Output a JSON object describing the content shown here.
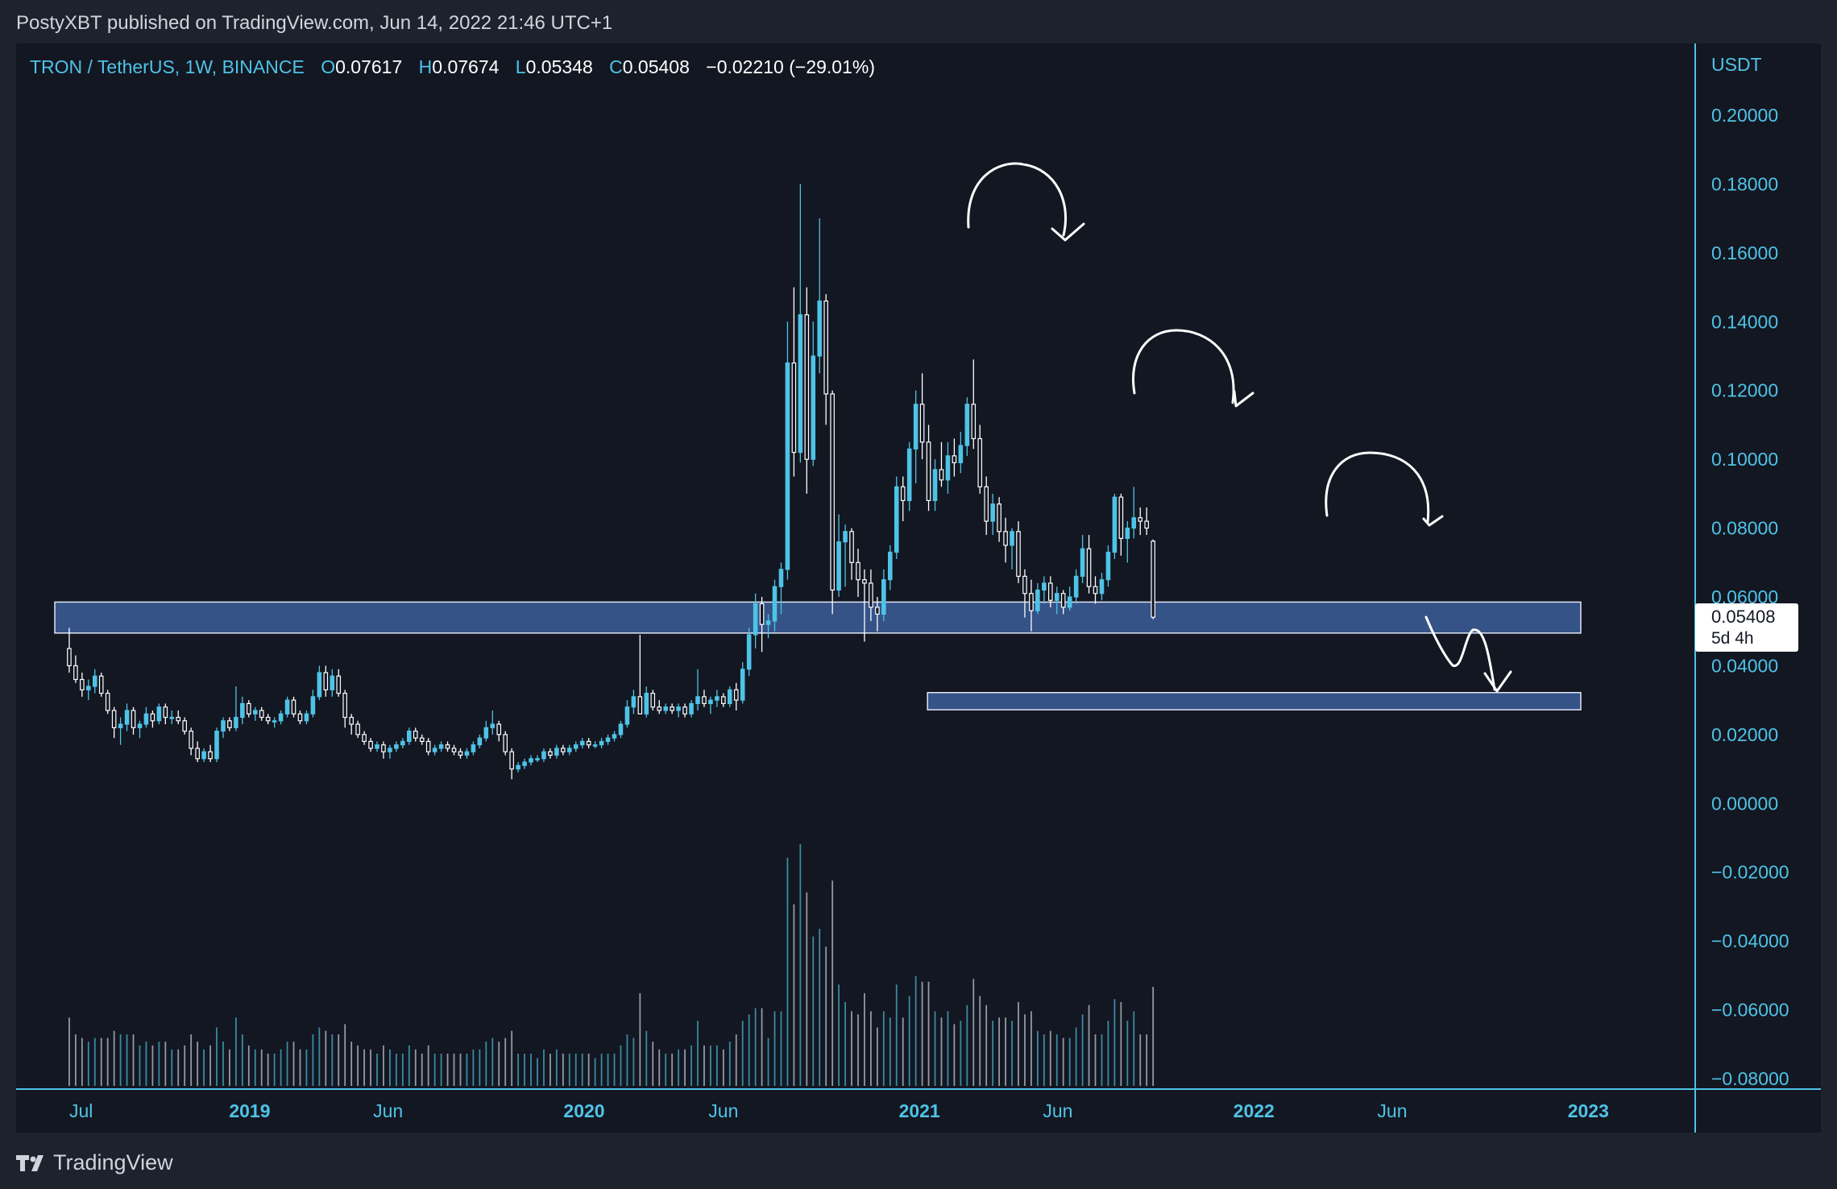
{
  "header": {
    "published": "PostyXBT published on TradingView.com, Jun 14, 2022 21:46 UTC+1"
  },
  "legend": {
    "symbol": "TRON / TetherUS, 1W, BINANCE",
    "open_label": "O",
    "open": "0.07617",
    "high_label": "H",
    "high": "0.07674",
    "low_label": "L",
    "low": "0.05348",
    "close_label": "C",
    "close": "0.05408",
    "change": "−0.02210 (−29.01%)"
  },
  "price_tag": {
    "price": "0.05408",
    "countdown": "5d 4h"
  },
  "footer": {
    "brand": "TradingView",
    "logo_icon": "tradingview-logo-icon"
  },
  "colors": {
    "background": "#131722",
    "up": "#4fc3e6",
    "down": "#ffffff",
    "zone": "#3a5a92",
    "axis_text": "#4fc3e6"
  },
  "chart_data": {
    "type": "candlestick",
    "ylabel": "USDT",
    "ylim": [
      -0.08,
      0.2
    ],
    "y_ticks": [
      "0.20000",
      "0.18000",
      "0.16000",
      "0.14000",
      "0.12000",
      "0.10000",
      "0.08000",
      "0.06000",
      "0.04000",
      "0.02000",
      "0.00000",
      "−0.02000",
      "−0.04000",
      "−0.06000",
      "−0.08000"
    ],
    "y_tick_values": [
      0.2,
      0.18,
      0.16,
      0.14,
      0.12,
      0.1,
      0.08,
      0.06,
      0.04,
      0.02,
      0,
      -0.02,
      -0.04,
      -0.06,
      -0.08
    ],
    "x_range": [
      "2018-06-04",
      "2023-03-20"
    ],
    "x_ticks": [
      {
        "label": "Jul",
        "date": "2018-07-01",
        "bold": false
      },
      {
        "label": "2019",
        "date": "2019-01-01",
        "bold": true
      },
      {
        "label": "Jun",
        "date": "2019-06-01",
        "bold": false
      },
      {
        "label": "2020",
        "date": "2020-01-01",
        "bold": true
      },
      {
        "label": "Jun",
        "date": "2020-06-01",
        "bold": false
      },
      {
        "label": "2021",
        "date": "2021-01-01",
        "bold": true
      },
      {
        "label": "Jun",
        "date": "2021-06-01",
        "bold": false
      },
      {
        "label": "2022",
        "date": "2022-01-01",
        "bold": true
      },
      {
        "label": "Jun",
        "date": "2022-06-01",
        "bold": false
      },
      {
        "label": "2023",
        "date": "2023-01-01",
        "bold": true
      }
    ],
    "first_candle": "2018-06-18",
    "interval": "1W",
    "candles": [
      [
        0.045,
        0.051,
        0.038,
        0.04
      ],
      [
        0.04,
        0.043,
        0.035,
        0.036
      ],
      [
        0.036,
        0.038,
        0.031,
        0.033
      ],
      [
        0.033,
        0.036,
        0.03,
        0.034
      ],
      [
        0.034,
        0.039,
        0.032,
        0.037
      ],
      [
        0.037,
        0.038,
        0.031,
        0.032
      ],
      [
        0.032,
        0.033,
        0.026,
        0.027
      ],
      [
        0.027,
        0.028,
        0.019,
        0.022
      ],
      [
        0.022,
        0.025,
        0.017,
        0.023
      ],
      [
        0.023,
        0.029,
        0.021,
        0.027
      ],
      [
        0.027,
        0.028,
        0.02,
        0.022
      ],
      [
        0.022,
        0.024,
        0.019,
        0.023
      ],
      [
        0.023,
        0.028,
        0.022,
        0.026
      ],
      [
        0.026,
        0.027,
        0.022,
        0.024
      ],
      [
        0.024,
        0.029,
        0.023,
        0.028
      ],
      [
        0.028,
        0.029,
        0.023,
        0.025
      ],
      [
        0.025,
        0.027,
        0.023,
        0.025
      ],
      [
        0.025,
        0.027,
        0.023,
        0.024
      ],
      [
        0.024,
        0.025,
        0.02,
        0.021
      ],
      [
        0.021,
        0.022,
        0.014,
        0.016
      ],
      [
        0.016,
        0.018,
        0.012,
        0.013
      ],
      [
        0.013,
        0.016,
        0.012,
        0.015
      ],
      [
        0.015,
        0.017,
        0.012,
        0.013
      ],
      [
        0.013,
        0.022,
        0.012,
        0.021
      ],
      [
        0.021,
        0.025,
        0.019,
        0.024
      ],
      [
        0.024,
        0.025,
        0.021,
        0.022
      ],
      [
        0.022,
        0.034,
        0.021,
        0.025
      ],
      [
        0.025,
        0.031,
        0.023,
        0.029
      ],
      [
        0.029,
        0.03,
        0.025,
        0.026
      ],
      [
        0.026,
        0.028,
        0.024,
        0.027
      ],
      [
        0.027,
        0.028,
        0.024,
        0.025
      ],
      [
        0.025,
        0.026,
        0.023,
        0.024
      ],
      [
        0.024,
        0.025,
        0.022,
        0.024
      ],
      [
        0.024,
        0.027,
        0.023,
        0.026
      ],
      [
        0.026,
        0.031,
        0.025,
        0.03
      ],
      [
        0.03,
        0.031,
        0.025,
        0.026
      ],
      [
        0.026,
        0.027,
        0.023,
        0.024
      ],
      [
        0.024,
        0.027,
        0.023,
        0.026
      ],
      [
        0.026,
        0.033,
        0.025,
        0.031
      ],
      [
        0.031,
        0.04,
        0.03,
        0.038
      ],
      [
        0.038,
        0.04,
        0.031,
        0.033
      ],
      [
        0.033,
        0.039,
        0.031,
        0.037
      ],
      [
        0.037,
        0.039,
        0.031,
        0.032
      ],
      [
        0.032,
        0.033,
        0.022,
        0.025
      ],
      [
        0.025,
        0.026,
        0.02,
        0.023
      ],
      [
        0.023,
        0.024,
        0.019,
        0.02
      ],
      [
        0.02,
        0.021,
        0.017,
        0.018
      ],
      [
        0.018,
        0.019,
        0.015,
        0.016
      ],
      [
        0.016,
        0.018,
        0.015,
        0.017
      ],
      [
        0.017,
        0.018,
        0.013,
        0.015
      ],
      [
        0.015,
        0.017,
        0.013,
        0.016
      ],
      [
        0.016,
        0.018,
        0.015,
        0.017
      ],
      [
        0.017,
        0.019,
        0.016,
        0.018
      ],
      [
        0.018,
        0.022,
        0.017,
        0.021
      ],
      [
        0.021,
        0.022,
        0.018,
        0.019
      ],
      [
        0.019,
        0.02,
        0.017,
        0.018
      ],
      [
        0.018,
        0.019,
        0.014,
        0.015
      ],
      [
        0.015,
        0.017,
        0.014,
        0.016
      ],
      [
        0.016,
        0.018,
        0.015,
        0.017
      ],
      [
        0.017,
        0.018,
        0.015,
        0.016
      ],
      [
        0.016,
        0.017,
        0.014,
        0.015
      ],
      [
        0.015,
        0.016,
        0.013,
        0.014
      ],
      [
        0.014,
        0.016,
        0.013,
        0.015
      ],
      [
        0.015,
        0.018,
        0.014,
        0.017
      ],
      [
        0.017,
        0.02,
        0.016,
        0.019
      ],
      [
        0.019,
        0.024,
        0.018,
        0.022
      ],
      [
        0.022,
        0.027,
        0.02,
        0.023
      ],
      [
        0.023,
        0.024,
        0.018,
        0.02
      ],
      [
        0.02,
        0.021,
        0.014,
        0.015
      ],
      [
        0.015,
        0.016,
        0.007,
        0.01
      ],
      [
        0.01,
        0.012,
        0.009,
        0.011
      ],
      [
        0.011,
        0.013,
        0.01,
        0.012
      ],
      [
        0.012,
        0.014,
        0.011,
        0.013
      ],
      [
        0.013,
        0.014,
        0.012,
        0.013
      ],
      [
        0.013,
        0.016,
        0.012,
        0.015
      ],
      [
        0.015,
        0.016,
        0.013,
        0.014
      ],
      [
        0.014,
        0.017,
        0.013,
        0.016
      ],
      [
        0.016,
        0.017,
        0.014,
        0.015
      ],
      [
        0.015,
        0.017,
        0.014,
        0.016
      ],
      [
        0.016,
        0.018,
        0.015,
        0.017
      ],
      [
        0.017,
        0.019,
        0.016,
        0.018
      ],
      [
        0.018,
        0.019,
        0.016,
        0.017
      ],
      [
        0.017,
        0.018,
        0.016,
        0.017
      ],
      [
        0.017,
        0.019,
        0.016,
        0.018
      ],
      [
        0.018,
        0.02,
        0.017,
        0.019
      ],
      [
        0.019,
        0.021,
        0.018,
        0.02
      ],
      [
        0.02,
        0.024,
        0.019,
        0.023
      ],
      [
        0.023,
        0.03,
        0.022,
        0.028
      ],
      [
        0.028,
        0.033,
        0.026,
        0.031
      ],
      [
        0.031,
        0.049,
        0.028,
        0.026
      ],
      [
        0.026,
        0.034,
        0.025,
        0.032
      ],
      [
        0.032,
        0.033,
        0.027,
        0.028
      ],
      [
        0.028,
        0.03,
        0.026,
        0.027
      ],
      [
        0.027,
        0.029,
        0.026,
        0.028
      ],
      [
        0.028,
        0.029,
        0.026,
        0.027
      ],
      [
        0.027,
        0.029,
        0.025,
        0.028
      ],
      [
        0.028,
        0.029,
        0.025,
        0.026
      ],
      [
        0.026,
        0.03,
        0.025,
        0.029
      ],
      [
        0.029,
        0.039,
        0.027,
        0.031
      ],
      [
        0.031,
        0.033,
        0.028,
        0.029
      ],
      [
        0.029,
        0.031,
        0.026,
        0.03
      ],
      [
        0.03,
        0.033,
        0.028,
        0.031
      ],
      [
        0.031,
        0.032,
        0.028,
        0.029
      ],
      [
        0.029,
        0.034,
        0.028,
        0.033
      ],
      [
        0.033,
        0.035,
        0.027,
        0.03
      ],
      [
        0.03,
        0.041,
        0.029,
        0.039
      ],
      [
        0.039,
        0.051,
        0.037,
        0.049
      ],
      [
        0.049,
        0.061,
        0.045,
        0.058
      ],
      [
        0.058,
        0.06,
        0.044,
        0.052
      ],
      [
        0.052,
        0.055,
        0.048,
        0.053
      ],
      [
        0.053,
        0.065,
        0.05,
        0.063
      ],
      [
        0.063,
        0.07,
        0.055,
        0.068
      ],
      [
        0.068,
        0.14,
        0.065,
        0.128
      ],
      [
        0.128,
        0.15,
        0.095,
        0.102
      ],
      [
        0.102,
        0.18,
        0.099,
        0.142
      ],
      [
        0.142,
        0.15,
        0.09,
        0.1
      ],
      [
        0.1,
        0.14,
        0.098,
        0.13
      ],
      [
        0.13,
        0.17,
        0.125,
        0.146
      ],
      [
        0.146,
        0.148,
        0.11,
        0.119
      ],
      [
        0.119,
        0.12,
        0.055,
        0.062
      ],
      [
        0.062,
        0.084,
        0.06,
        0.076
      ],
      [
        0.076,
        0.081,
        0.063,
        0.079
      ],
      [
        0.079,
        0.08,
        0.065,
        0.07
      ],
      [
        0.07,
        0.074,
        0.06,
        0.065
      ],
      [
        0.065,
        0.068,
        0.047,
        0.064
      ],
      [
        0.064,
        0.068,
        0.053,
        0.057
      ],
      [
        0.057,
        0.06,
        0.05,
        0.055
      ],
      [
        0.055,
        0.068,
        0.053,
        0.065
      ],
      [
        0.065,
        0.075,
        0.062,
        0.073
      ],
      [
        0.073,
        0.095,
        0.071,
        0.092
      ],
      [
        0.092,
        0.095,
        0.082,
        0.088
      ],
      [
        0.088,
        0.105,
        0.085,
        0.103
      ],
      [
        0.103,
        0.12,
        0.093,
        0.116
      ],
      [
        0.116,
        0.125,
        0.1,
        0.105
      ],
      [
        0.105,
        0.11,
        0.085,
        0.088
      ],
      [
        0.088,
        0.1,
        0.085,
        0.097
      ],
      [
        0.097,
        0.105,
        0.092,
        0.094
      ],
      [
        0.094,
        0.105,
        0.09,
        0.101
      ],
      [
        0.101,
        0.106,
        0.095,
        0.099
      ],
      [
        0.099,
        0.108,
        0.096,
        0.104
      ],
      [
        0.104,
        0.118,
        0.101,
        0.116
      ],
      [
        0.116,
        0.129,
        0.103,
        0.106
      ],
      [
        0.106,
        0.11,
        0.09,
        0.092
      ],
      [
        0.092,
        0.095,
        0.078,
        0.082
      ],
      [
        0.082,
        0.09,
        0.078,
        0.087
      ],
      [
        0.087,
        0.089,
        0.076,
        0.079
      ],
      [
        0.079,
        0.083,
        0.07,
        0.075
      ],
      [
        0.075,
        0.08,
        0.068,
        0.079
      ],
      [
        0.079,
        0.082,
        0.064,
        0.066
      ],
      [
        0.066,
        0.068,
        0.054,
        0.061
      ],
      [
        0.061,
        0.065,
        0.05,
        0.056
      ],
      [
        0.056,
        0.064,
        0.055,
        0.062
      ],
      [
        0.062,
        0.066,
        0.058,
        0.064
      ],
      [
        0.064,
        0.066,
        0.057,
        0.059
      ],
      [
        0.059,
        0.063,
        0.055,
        0.061
      ],
      [
        0.061,
        0.062,
        0.055,
        0.057
      ],
      [
        0.057,
        0.063,
        0.056,
        0.06
      ],
      [
        0.06,
        0.068,
        0.058,
        0.066
      ],
      [
        0.066,
        0.078,
        0.064,
        0.074
      ],
      [
        0.074,
        0.078,
        0.061,
        0.063
      ],
      [
        0.063,
        0.066,
        0.058,
        0.061
      ],
      [
        0.061,
        0.067,
        0.059,
        0.065
      ],
      [
        0.065,
        0.075,
        0.063,
        0.073
      ],
      [
        0.073,
        0.09,
        0.071,
        0.089
      ],
      [
        0.089,
        0.09,
        0.072,
        0.077
      ],
      [
        0.077,
        0.082,
        0.07,
        0.08
      ],
      [
        0.08,
        0.092,
        0.077,
        0.083
      ],
      [
        0.083,
        0.086,
        0.078,
        0.082
      ],
      [
        0.082,
        0.086,
        0.078,
        0.08
      ],
      [
        0.0762,
        0.0767,
        0.0535,
        0.0541
      ]
    ],
    "volume_scale": [
      0,
      1
    ],
    "zones": [
      {
        "from": 0.0495,
        "to": 0.0585
      },
      {
        "from": 0.0272,
        "to": 0.0322
      }
    ]
  }
}
